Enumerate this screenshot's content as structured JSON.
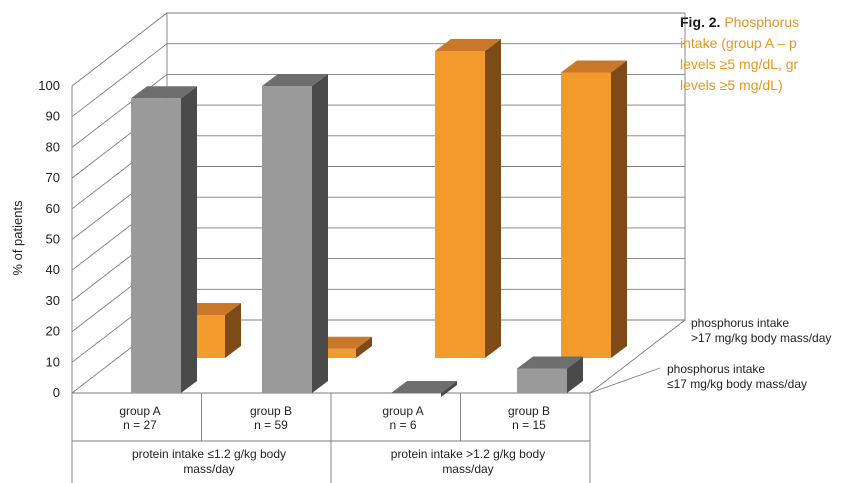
{
  "caption": {
    "fig_label": "Fig. 2.",
    "line1": "Phosphorus",
    "line2": "intake (group A – p",
    "line3": "levels ≥5 mg/dL, gr",
    "line4": "levels ≥5 mg/dL)"
  },
  "chart_data": {
    "type": "bar",
    "subtype": "3d-clustered-column",
    "ylabel": "% of patients",
    "ylim": [
      0,
      100
    ],
    "yticks": [
      0,
      10,
      20,
      30,
      40,
      50,
      60,
      70,
      80,
      90,
      100
    ],
    "grid": true,
    "categories": [
      {
        "label1": "group A",
        "label2": "n = 27",
        "group": "protein intake ≤1.2 g/kg body mass/day"
      },
      {
        "label1": "group B",
        "label2": "n = 59",
        "group": "protein intake ≤1.2 g/kg body mass/day"
      },
      {
        "label1": "group A",
        "label2": "n = 6",
        "group": "protein intake >1.2 g/kg body mass/day"
      },
      {
        "label1": "group B",
        "label2": "n = 15",
        "group": "protein intake >1.2 g/kg body mass/day"
      }
    ],
    "group_labels": [
      {
        "line1": "protein intake ≤1.2 g/kg body",
        "line2": "mass/day"
      },
      {
        "line1": "protein intake >1.2 g/kg body",
        "line2": "mass/day"
      }
    ],
    "series": [
      {
        "name_line1": "phosphorus intake",
        "name_line2": "≤17 mg/kg body mass/day",
        "color": "#9a9a9a",
        "color_top": "#6e6e6e",
        "color_side": "#4a4a4a",
        "values": [
          96,
          100,
          0,
          8
        ]
      },
      {
        "name_line1": "phosphorus intake",
        "name_line2": ">17 mg/kg body mass/day",
        "color": "#f39a2c",
        "color_top": "#c9782a",
        "color_side": "#7d4a18",
        "values": [
          14,
          3,
          100,
          93
        ]
      }
    ]
  }
}
